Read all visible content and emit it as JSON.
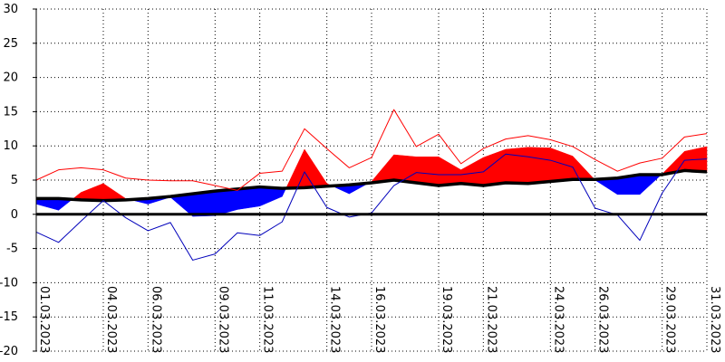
{
  "chart_data": {
    "type": "area",
    "title": "",
    "xlabel": "",
    "ylabel": "",
    "ylim": [
      -20,
      30
    ],
    "yticks": [
      -20,
      -15,
      -10,
      -5,
      0,
      5,
      10,
      15,
      20,
      25,
      30
    ],
    "grid": true,
    "x": [
      "01.03.2023",
      "02.03.2023",
      "03.03.2023",
      "04.03.2023",
      "05.03.2023",
      "06.03.2023",
      "07.03.2023",
      "08.03.2023",
      "09.03.2023",
      "10.03.2023",
      "11.03.2023",
      "12.03.2023",
      "13.03.2023",
      "14.03.2023",
      "15.03.2023",
      "16.03.2023",
      "17.03.2023",
      "18.03.2023",
      "19.03.2023",
      "20.03.2023",
      "21.03.2023",
      "22.03.2023",
      "23.03.2023",
      "24.03.2023",
      "25.03.2023",
      "26.03.2023",
      "27.03.2023",
      "28.03.2023",
      "29.03.2023",
      "30.03.2023",
      "31.03.2023"
    ],
    "xtick_labels": [
      "01.03.2023",
      "04.03.2023",
      "06.03.2023",
      "09.03.2023",
      "11.03.2023",
      "14.03.2023",
      "16.03.2023",
      "19.03.2023",
      "21.03.2023",
      "24.03.2023",
      "26.03.2023",
      "29.03.2023",
      "31.03.2023"
    ],
    "series": [
      {
        "role": "mean",
        "color": "#ff0000",
        "values": [
          1.5,
          0.6,
          3.2,
          4.5,
          2.3,
          1.5,
          2.5,
          -0.3,
          -0.2,
          0.7,
          1.2,
          2.6,
          9.5,
          4.5,
          3.0,
          4.8,
          8.7,
          8.4,
          8.4,
          6.5,
          8.3,
          9.5,
          9.8,
          9.7,
          8.5,
          5.0,
          2.9,
          2.9,
          5.9,
          9.2,
          9.9
        ]
      },
      {
        "role": "normal",
        "color": "#000000",
        "values": [
          2.3,
          2.3,
          2.1,
          2.0,
          2.1,
          2.3,
          2.6,
          3.0,
          3.4,
          3.7,
          4.0,
          3.8,
          3.9,
          4.1,
          4.3,
          4.6,
          5.0,
          4.6,
          4.2,
          4.5,
          4.2,
          4.6,
          4.5,
          4.8,
          5.1,
          5.1,
          5.3,
          5.8,
          5.8,
          6.4,
          6.2
        ]
      },
      {
        "role": "max",
        "color": "#ff0000",
        "values": [
          5.0,
          6.5,
          6.8,
          6.5,
          5.3,
          5.0,
          4.9,
          4.9,
          4.2,
          3.5,
          6.0,
          6.3,
          12.5,
          9.6,
          6.8,
          8.3,
          15.3,
          9.9,
          11.7,
          7.4,
          9.6,
          11.0,
          11.5,
          10.9,
          9.9,
          8.0,
          6.3,
          7.5,
          8.2,
          11.3,
          11.8
        ]
      },
      {
        "role": "min",
        "color": "#0000bb",
        "values": [
          -2.6,
          -4.1,
          -1.0,
          2.0,
          -0.5,
          -2.4,
          -1.2,
          -6.7,
          -5.8,
          -2.7,
          -3.1,
          -1.1,
          6.2,
          1.0,
          -0.4,
          0.2,
          4.2,
          6.1,
          5.8,
          5.8,
          6.2,
          8.8,
          8.4,
          7.9,
          6.9,
          0.9,
          -0.1,
          -3.8,
          3.1,
          7.9,
          8.1
        ]
      }
    ],
    "colors": {
      "above_normal_fill": "#ff0000",
      "below_normal_fill": "#0000ff",
      "grid": "#000000",
      "zero_line": "#000000"
    }
  }
}
